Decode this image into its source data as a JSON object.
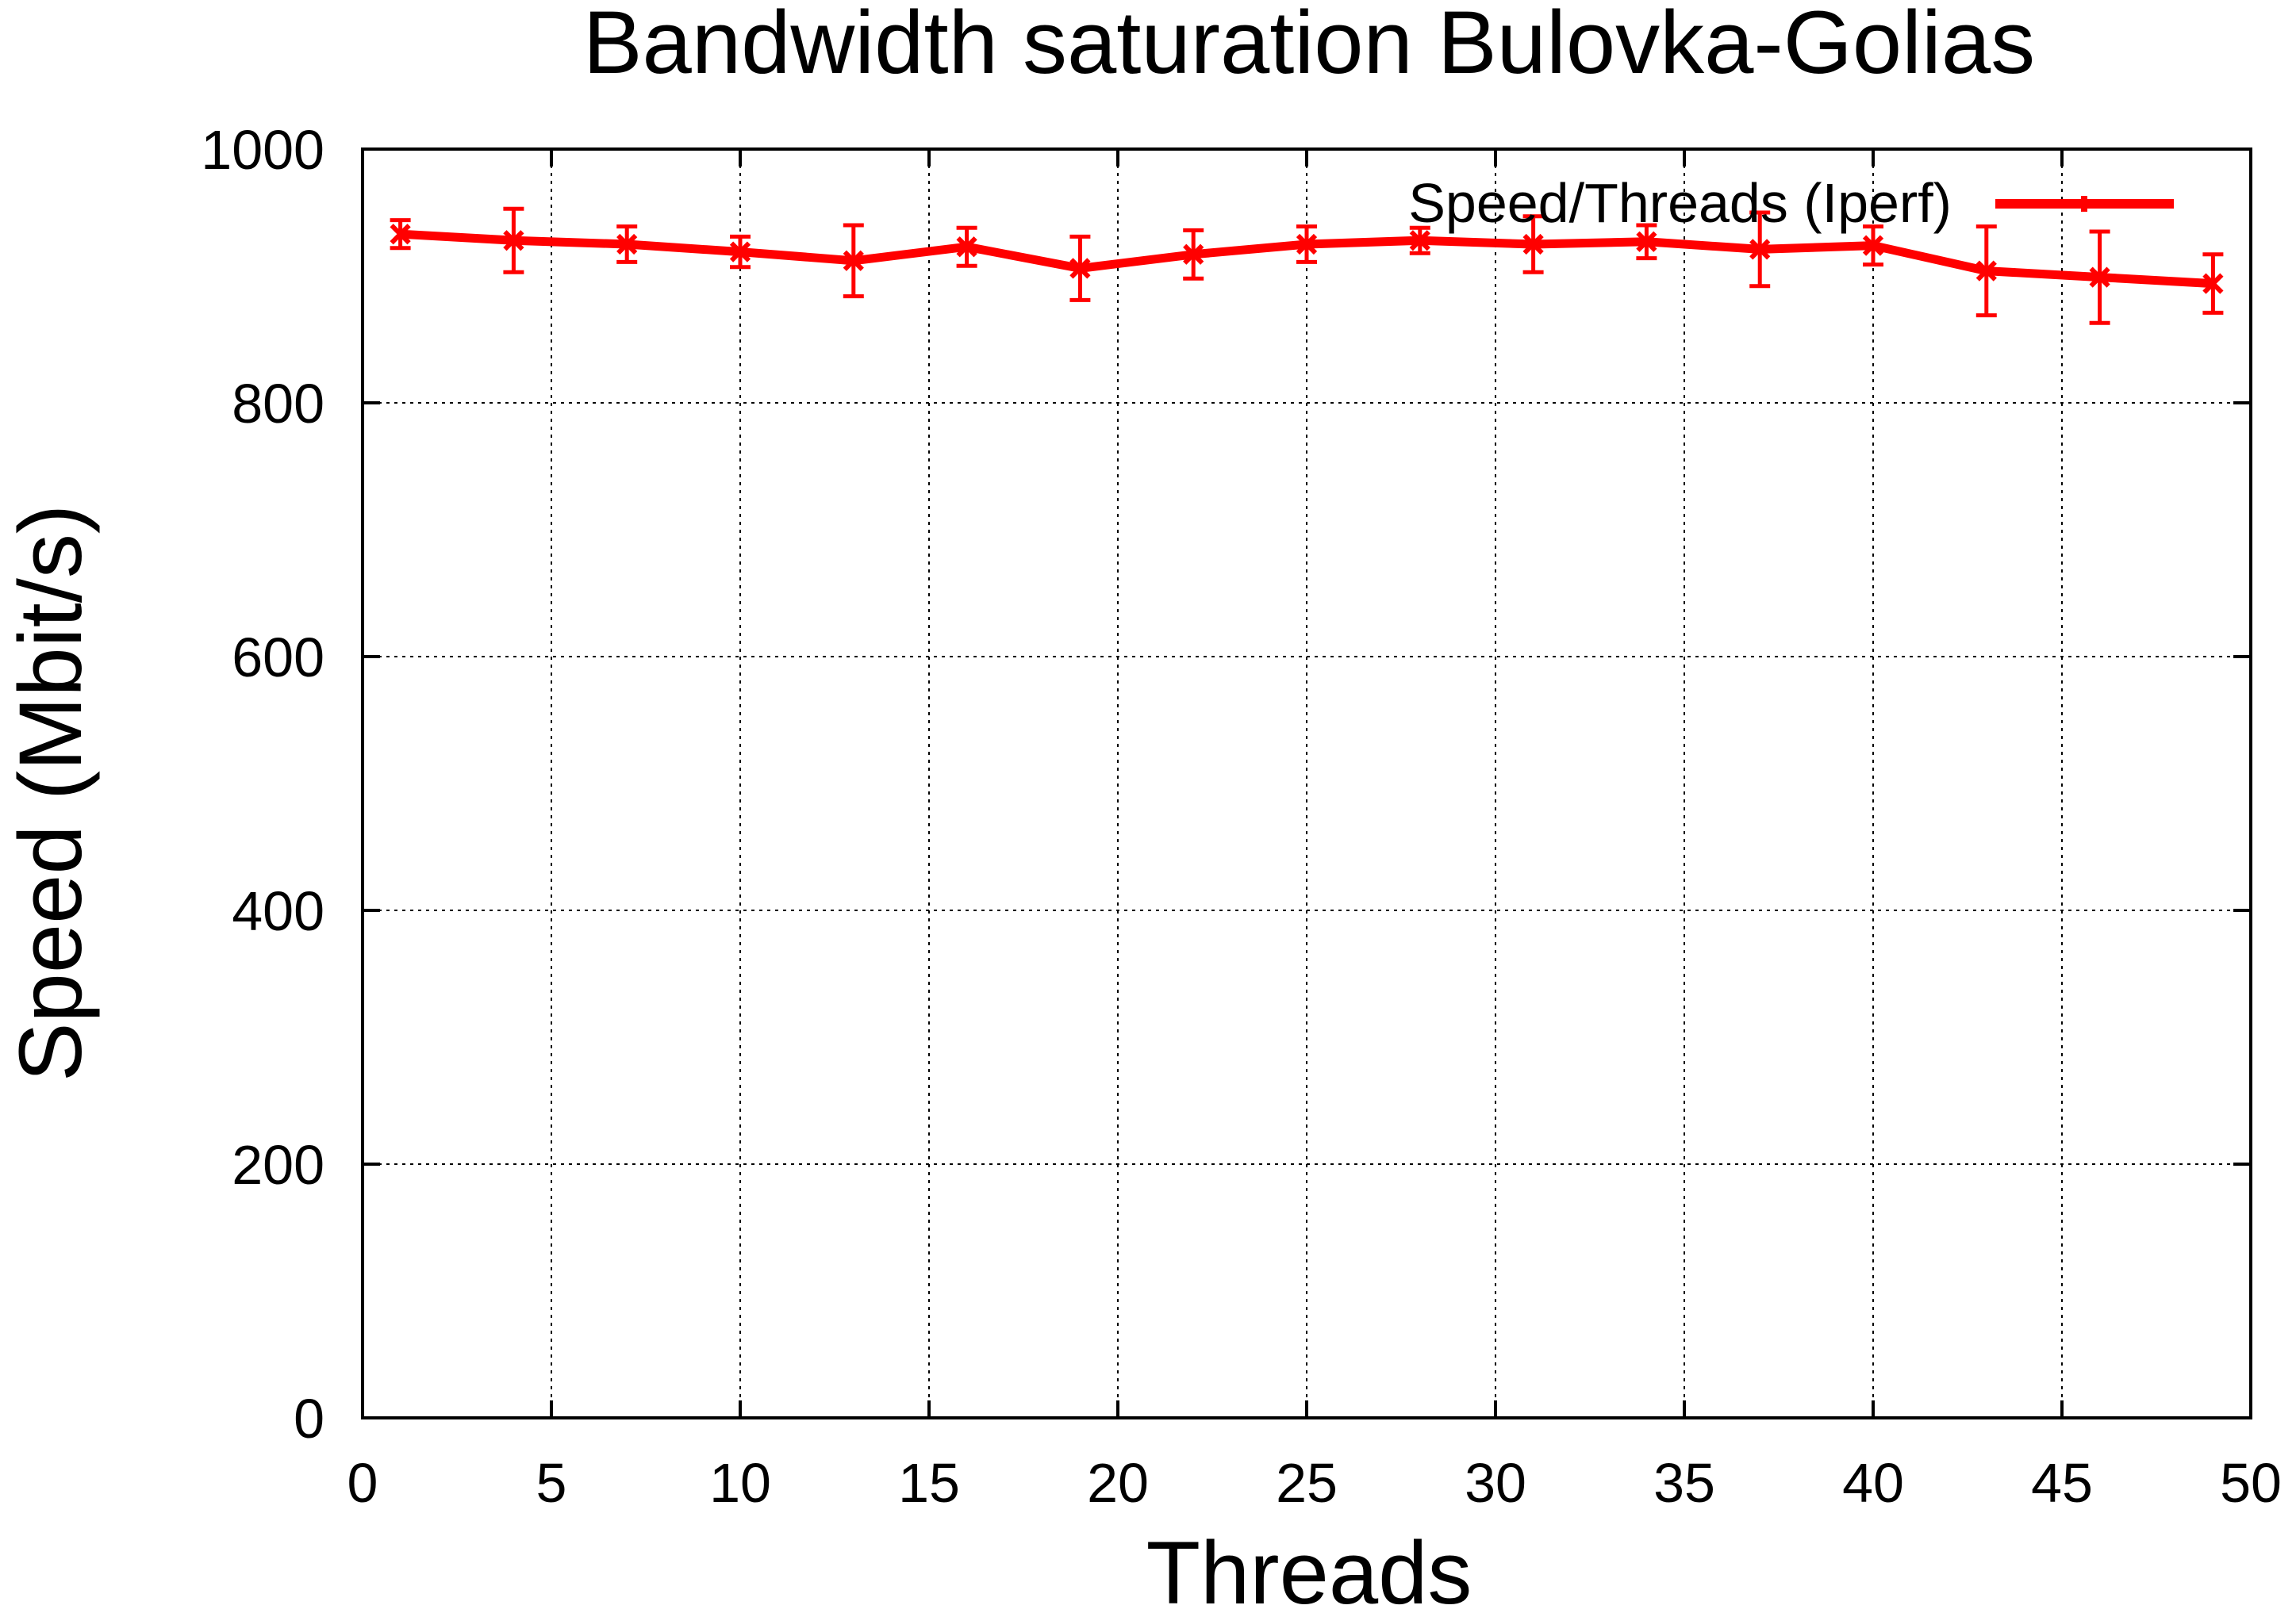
{
  "chart_data": {
    "type": "line",
    "title": "Bandwidth saturation Bulovka-Golias",
    "xlabel": "Threads",
    "ylabel": "Speed (Mbit/s)",
    "xlim": [
      0,
      50
    ],
    "ylim": [
      0,
      1000
    ],
    "xticks": [
      "0",
      "5",
      "10",
      "15",
      "20",
      "25",
      "30",
      "35",
      "40",
      "45",
      "50"
    ],
    "yticks": [
      "0",
      "200",
      "400",
      "600",
      "800",
      "1000"
    ],
    "grid": true,
    "legend_position": "top-right",
    "series": [
      {
        "name": "Speed/Threads (Iperf)",
        "color": "#ff0000",
        "x": [
          1,
          4,
          7,
          10,
          13,
          16,
          19,
          22,
          25,
          28,
          31,
          34,
          37,
          40,
          43,
          46,
          49
        ],
        "values": [
          933,
          928,
          925,
          919,
          912,
          923,
          906,
          917,
          925,
          928,
          925,
          927,
          921,
          924,
          904,
          899,
          894
        ],
        "error": [
          11,
          25,
          14,
          12,
          28,
          15,
          25,
          19,
          14,
          10,
          22,
          13,
          29,
          15,
          35,
          36,
          23
        ]
      }
    ]
  }
}
